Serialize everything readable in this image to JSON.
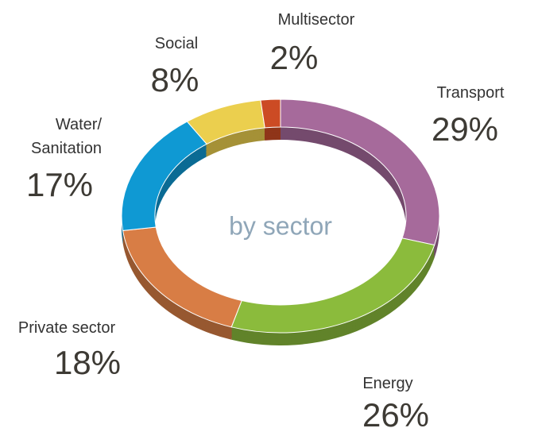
{
  "chart_data": {
    "type": "donut",
    "center_label": "by sector",
    "categories": [
      "Transport",
      "Energy",
      "Private sector",
      "Water/\nSanitation",
      "Social",
      "Multisector"
    ],
    "values": [
      29,
      26,
      18,
      17,
      8,
      2
    ],
    "value_labels": [
      "29%",
      "26%",
      "18%",
      "17%",
      "8%",
      "2%"
    ],
    "colors": [
      "#a66a9b",
      "#8bbb3c",
      "#d87d45",
      "#0f99d3",
      "#ebcf4e",
      "#cc4b24"
    ]
  }
}
